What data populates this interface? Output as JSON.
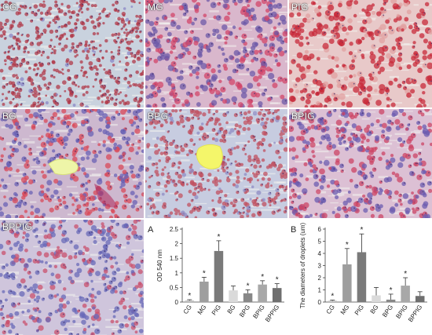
{
  "panels": [
    {
      "label": "CG",
      "base": "#c9d2de",
      "cell": "#8a86c6",
      "dot": "#b03a4a",
      "cellR": 2.2,
      "density": 520,
      "accent": 0.06
    },
    {
      "label": "MG",
      "base": "#d9b7cc",
      "cell": "#d2466a",
      "dot": "#6e5aa8",
      "cellR": 3.2,
      "density": 360,
      "accent": 0.45
    },
    {
      "label": "PIG",
      "base": "#e8c9c9",
      "cell": "#c82a3a",
      "dot": "#e2a0a0",
      "cellR": 3.3,
      "density": 340,
      "accent": 0.7
    },
    {
      "label": "BG",
      "base": "#cdb8cf",
      "cell": "#d84a5a",
      "dot": "#6a62b4",
      "cellR": 2.9,
      "density": 400,
      "accent": 0.5
    },
    {
      "label": "BPG",
      "base": "#c7cce0",
      "cell": "#8f8cc4",
      "dot": "#c05060",
      "cellR": 2.4,
      "density": 480,
      "accent": 0.12
    },
    {
      "label": "BPIG",
      "base": "#dcc0d4",
      "cell": "#cc4466",
      "dot": "#6c5cb0",
      "cellR": 3.0,
      "density": 380,
      "accent": 0.55
    },
    {
      "label": "BPPIG",
      "base": "#cfc5dc",
      "cell": "#c9506e",
      "dot": "#6a6ab8",
      "cellR": 2.8,
      "density": 400,
      "accent": 0.4
    }
  ],
  "chart_data": [
    {
      "type": "bar",
      "panel_letter": "A",
      "ylabel": "OD 540 nm",
      "categories": [
        "CG",
        "MG",
        "PIG",
        "BG",
        "BPG",
        "BPIG",
        "BPPIG"
      ],
      "values": [
        0.05,
        0.7,
        1.75,
        0.4,
        0.3,
        0.6,
        0.48
      ],
      "errors": [
        0.03,
        0.15,
        0.35,
        0.15,
        0.12,
        0.13,
        0.15
      ],
      "significance": [
        "*",
        "*",
        "*",
        "",
        "*",
        "*",
        "*"
      ],
      "ylim": [
        0,
        2.5
      ],
      "yticks": [
        "0",
        "0.5",
        "1",
        "1.5",
        "2",
        "2.5"
      ],
      "colors": [
        "#bdbdbd",
        "#9e9e9e",
        "#7a7a7a",
        "#dadada",
        "#888888",
        "#a8a8a8",
        "#6f6f6f"
      ]
    },
    {
      "type": "bar",
      "panel_letter": "B",
      "ylabel": "The diameters of droplets (um)",
      "categories": [
        "CG",
        "MG",
        "PIG",
        "BG",
        "BPG",
        "BPIG",
        "BPPIG"
      ],
      "values": [
        0.1,
        3.1,
        4.1,
        0.55,
        0.2,
        1.35,
        0.5
      ],
      "errors": [
        0.06,
        1.3,
        1.5,
        0.65,
        0.45,
        0.65,
        0.35
      ],
      "significance": [
        "*",
        "*",
        "*",
        "",
        "*",
        "*",
        ""
      ],
      "ylim": [
        0,
        6
      ],
      "yticks": [
        "0",
        "1",
        "2",
        "3",
        "4",
        "5",
        "6"
      ],
      "colors": [
        "#bdbdbd",
        "#9e9e9e",
        "#7a7a7a",
        "#dadada",
        "#888888",
        "#a8a8a8",
        "#6f6f6f"
      ]
    }
  ]
}
